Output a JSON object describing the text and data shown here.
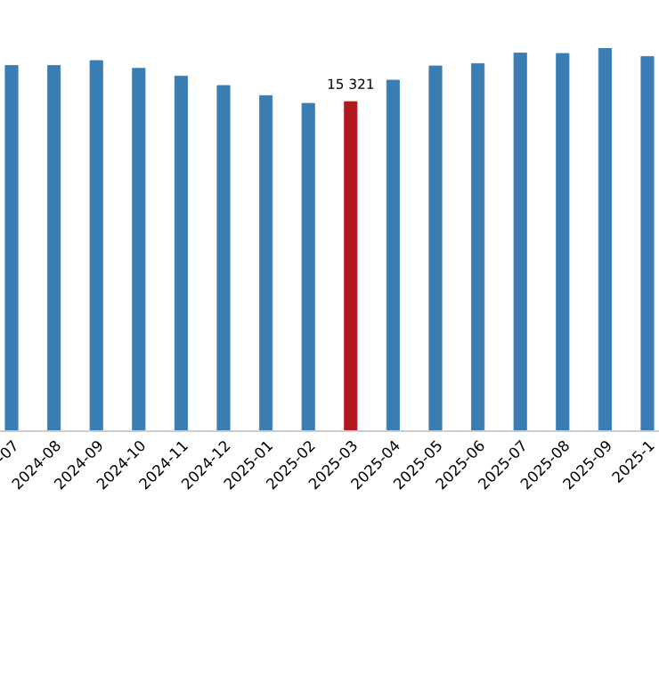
{
  "chart_data": {
    "type": "bar",
    "categories": [
      "-07",
      "2024-08",
      "2024-09",
      "2024-10",
      "2024-11",
      "2024-12",
      "2025-01",
      "2025-02",
      "2025-03",
      "2025-04",
      "2025-05",
      "2025-06",
      "2025-07",
      "2025-08",
      "2025-09",
      "2025-1"
    ],
    "values": [
      17000,
      17000,
      17230,
      16870,
      16510,
      16070,
      15600,
      15240,
      15321,
      16320,
      16980,
      17090,
      17580,
      17560,
      17810,
      17420
    ],
    "colors": [
      "#3a7db3",
      "#3a7db3",
      "#3a7db3",
      "#3a7db3",
      "#3a7db3",
      "#3a7db3",
      "#3a7db3",
      "#3a7db3",
      "#b01a1f",
      "#3a7db3",
      "#3a7db3",
      "#3a7db3",
      "#3a7db3",
      "#3a7db3",
      "#3a7db3",
      "#3a7db3"
    ],
    "value_labels": [
      null,
      null,
      null,
      null,
      null,
      null,
      null,
      null,
      "15 321",
      null,
      null,
      null,
      null,
      null,
      null,
      null
    ],
    "grid": false,
    "legend": false
  }
}
